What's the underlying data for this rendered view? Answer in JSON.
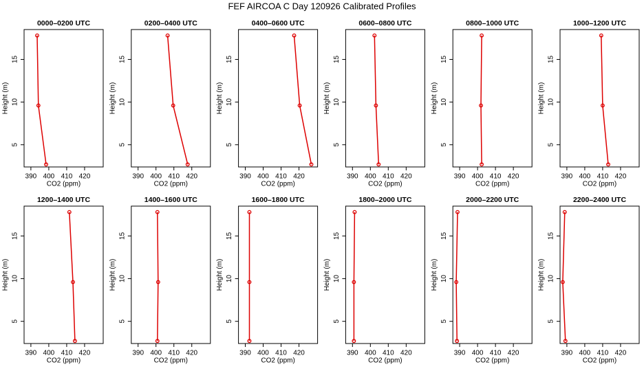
{
  "title": "FEF AIRCOA C  Day 120926  Calibrated Profiles",
  "chart_data": [
    {
      "type": "line",
      "title": "0000–0200 UTC",
      "xlabel": "CO2 (ppm)",
      "ylabel": "Height (m)",
      "x": [
        393.5,
        394.2,
        398.5
      ],
      "y": [
        17.8,
        9.6,
        2.7
      ],
      "color": "#dd0000",
      "xlim": [
        386.2,
        430.4
      ],
      "xticks": [
        390,
        400,
        410,
        420
      ],
      "ylim": [
        2.4,
        18.5
      ],
      "yticks": [
        5,
        10,
        15
      ]
    },
    {
      "type": "line",
      "title": "0200–0400 UTC",
      "xlabel": "CO2 (ppm)",
      "ylabel": "Height (m)",
      "x": [
        406.5,
        409.6,
        417.7
      ],
      "y": [
        17.8,
        9.6,
        2.7
      ],
      "color": "#dd0000",
      "xlim": [
        386.2,
        430.4
      ],
      "xticks": [
        390,
        400,
        410,
        420
      ],
      "ylim": [
        2.4,
        18.5
      ],
      "yticks": [
        5,
        10,
        15
      ]
    },
    {
      "type": "line",
      "title": "0400–0600 UTC",
      "xlabel": "CO2 (ppm)",
      "ylabel": "Height (m)",
      "x": [
        417.3,
        420.4,
        426.9
      ],
      "y": [
        17.8,
        9.6,
        2.7
      ],
      "color": "#dd0000",
      "xlim": [
        386.2,
        430.4
      ],
      "xticks": [
        390,
        400,
        410,
        420
      ],
      "ylim": [
        2.4,
        18.5
      ],
      "yticks": [
        5,
        10,
        15
      ]
    },
    {
      "type": "line",
      "title": "0600–0800 UTC",
      "xlabel": "CO2 (ppm)",
      "ylabel": "Height (m)",
      "x": [
        402.3,
        403.1,
        404.6
      ],
      "y": [
        17.8,
        9.6,
        2.7
      ],
      "color": "#dd0000",
      "xlim": [
        386.2,
        430.4
      ],
      "xticks": [
        390,
        400,
        410,
        420
      ],
      "ylim": [
        2.4,
        18.5
      ],
      "yticks": [
        5,
        10,
        15
      ]
    },
    {
      "type": "line",
      "title": "0800–1000 UTC",
      "xlabel": "CO2 (ppm)",
      "ylabel": "Height (m)",
      "x": [
        402.3,
        401.9,
        402.3
      ],
      "y": [
        17.8,
        9.6,
        2.7
      ],
      "color": "#dd0000",
      "xlim": [
        386.2,
        430.4
      ],
      "xticks": [
        390,
        400,
        410,
        420
      ],
      "ylim": [
        2.4,
        18.5
      ],
      "yticks": [
        5,
        10,
        15
      ]
    },
    {
      "type": "line",
      "title": "1000–1200 UTC",
      "xlabel": "CO2 (ppm)",
      "ylabel": "Height (m)",
      "x": [
        409.2,
        410.0,
        413.1
      ],
      "y": [
        17.8,
        9.6,
        2.7
      ],
      "color": "#dd0000",
      "xlim": [
        386.2,
        430.4
      ],
      "xticks": [
        390,
        400,
        410,
        420
      ],
      "ylim": [
        2.4,
        18.5
      ],
      "yticks": [
        5,
        10,
        15
      ]
    },
    {
      "type": "line",
      "title": "1200–1400 UTC",
      "xlabel": "CO2 (ppm)",
      "ylabel": "Height (m)",
      "x": [
        411.5,
        413.5,
        414.6
      ],
      "y": [
        17.8,
        9.6,
        2.7
      ],
      "color": "#dd0000",
      "xlim": [
        386.2,
        430.4
      ],
      "xticks": [
        390,
        400,
        410,
        420
      ],
      "ylim": [
        2.4,
        18.5
      ],
      "yticks": [
        5,
        10,
        15
      ]
    },
    {
      "type": "line",
      "title": "1400–1600 UTC",
      "xlabel": "CO2 (ppm)",
      "ylabel": "Height (m)",
      "x": [
        400.8,
        401.2,
        400.8
      ],
      "y": [
        17.8,
        9.6,
        2.7
      ],
      "color": "#dd0000",
      "xlim": [
        386.2,
        430.4
      ],
      "xticks": [
        390,
        400,
        410,
        420
      ],
      "ylim": [
        2.4,
        18.5
      ],
      "yticks": [
        5,
        10,
        15
      ]
    },
    {
      "type": "line",
      "title": "1600–1800 UTC",
      "xlabel": "CO2 (ppm)",
      "ylabel": "Height (m)",
      "x": [
        392.3,
        392.3,
        392.3
      ],
      "y": [
        17.8,
        9.6,
        2.7
      ],
      "color": "#dd0000",
      "xlim": [
        386.2,
        430.4
      ],
      "xticks": [
        390,
        400,
        410,
        420
      ],
      "ylim": [
        2.4,
        18.5
      ],
      "yticks": [
        5,
        10,
        15
      ]
    },
    {
      "type": "line",
      "title": "1800–2000 UTC",
      "xlabel": "CO2 (ppm)",
      "ylabel": "Height (m)",
      "x": [
        391.2,
        390.8,
        390.8
      ],
      "y": [
        17.8,
        9.6,
        2.7
      ],
      "color": "#dd0000",
      "xlim": [
        386.2,
        430.4
      ],
      "xticks": [
        390,
        400,
        410,
        420
      ],
      "ylim": [
        2.4,
        18.5
      ],
      "yticks": [
        5,
        10,
        15
      ]
    },
    {
      "type": "line",
      "title": "2000–2200 UTC",
      "xlabel": "CO2 (ppm)",
      "ylabel": "Height (m)",
      "x": [
        388.8,
        388.1,
        388.5
      ],
      "y": [
        17.8,
        9.6,
        2.7
      ],
      "color": "#dd0000",
      "xlim": [
        386.2,
        430.4
      ],
      "xticks": [
        390,
        400,
        410,
        420
      ],
      "ylim": [
        2.4,
        18.5
      ],
      "yticks": [
        5,
        10,
        15
      ]
    },
    {
      "type": "line",
      "title": "2200–2400 UTC",
      "xlabel": "CO2 (ppm)",
      "ylabel": "Height (m)",
      "x": [
        388.8,
        387.7,
        389.2
      ],
      "y": [
        17.8,
        9.6,
        2.7
      ],
      "color": "#dd0000",
      "xlim": [
        386.2,
        430.4
      ],
      "xticks": [
        390,
        400,
        410,
        420
      ],
      "ylim": [
        2.4,
        18.5
      ],
      "yticks": [
        5,
        10,
        15
      ]
    }
  ]
}
